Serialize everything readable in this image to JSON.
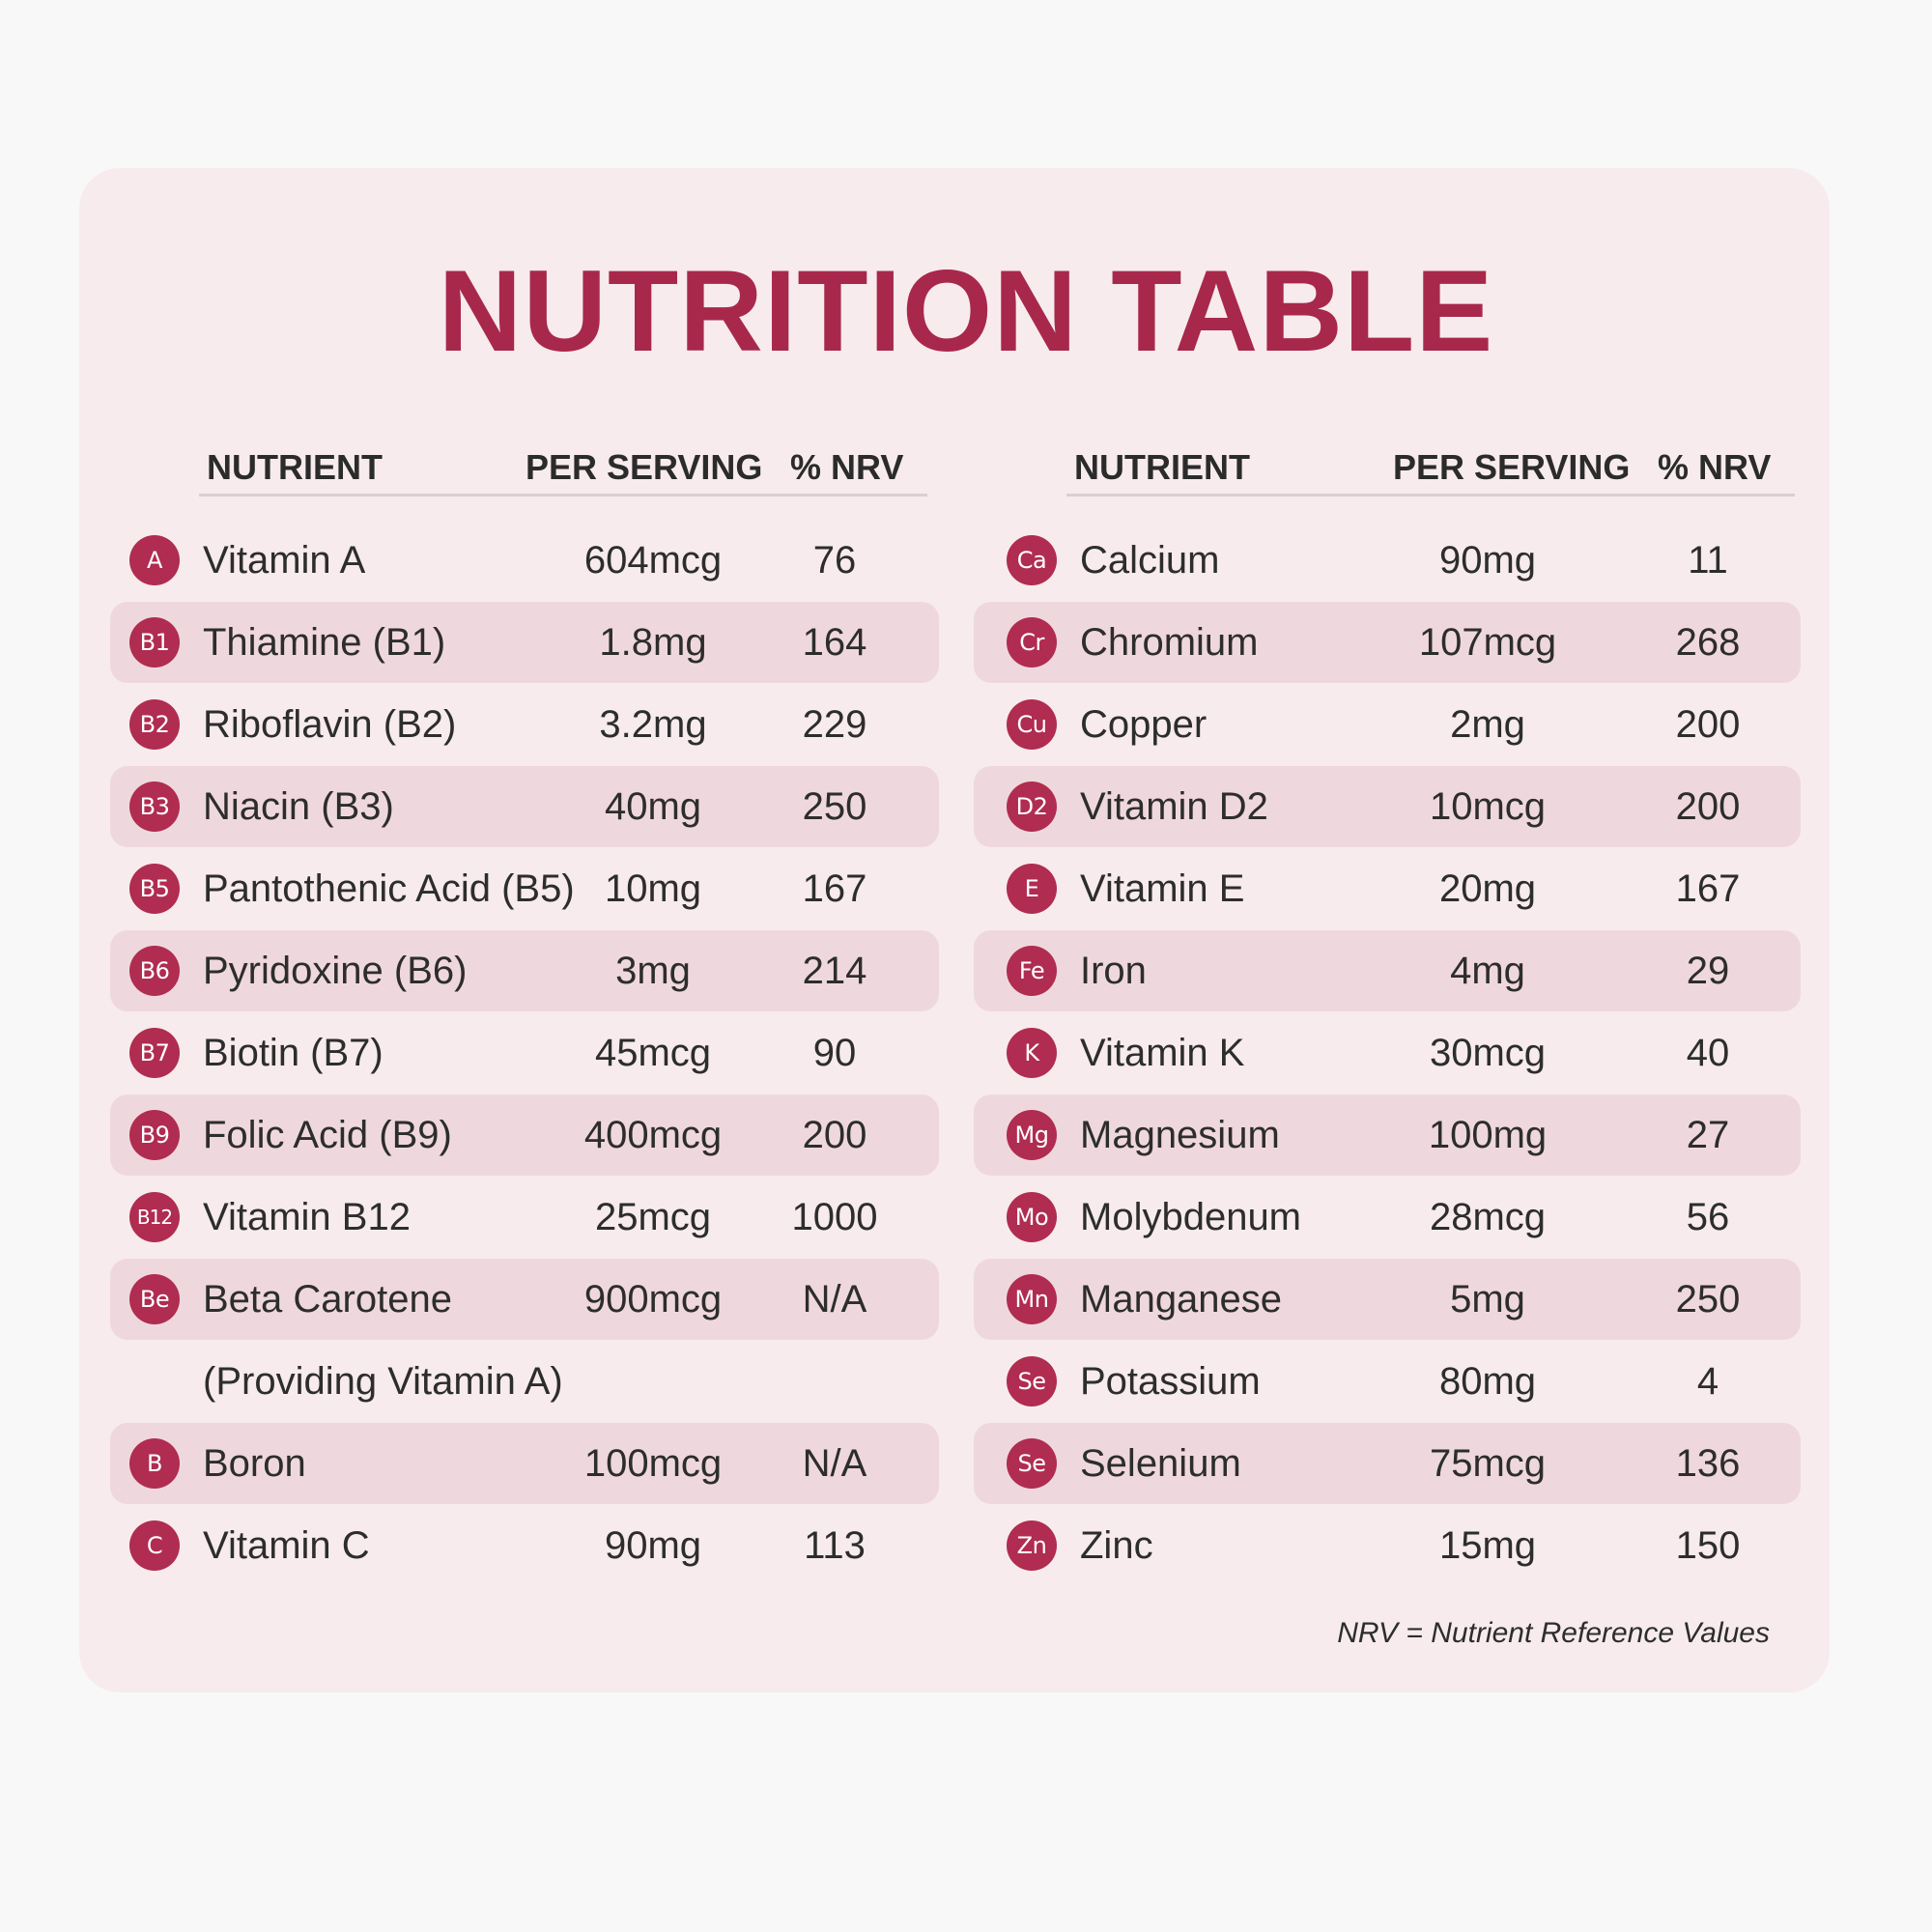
{
  "title": "NUTRITION TABLE",
  "colors": {
    "accent": "#a8284b",
    "badge": "#b02c50",
    "card_background": "#f7ebed",
    "row_shade": "#efd8dd",
    "page_background": "#f9f8f8"
  },
  "left_table": {
    "headers": {
      "nutrient": "NUTRIENT",
      "per_serving": "PER SERVING",
      "nrv": "% NRV"
    },
    "rows": [
      {
        "badge": "A",
        "name": "Vitamin A",
        "per_serving": "604mcg",
        "nrv": "76",
        "shaded": false
      },
      {
        "badge": "B1",
        "name": "Thiamine (B1)",
        "per_serving": "1.8mg",
        "nrv": "164",
        "shaded": true
      },
      {
        "badge": "B2",
        "name": "Riboflavin (B2)",
        "per_serving": "3.2mg",
        "nrv": "229",
        "shaded": false
      },
      {
        "badge": "B3",
        "name": "Niacin (B3)",
        "per_serving": "40mg",
        "nrv": "250",
        "shaded": true
      },
      {
        "badge": "B5",
        "name": "Pantothenic Acid (B5)",
        "per_serving": "10mg",
        "nrv": "167",
        "shaded": false
      },
      {
        "badge": "B6",
        "name": "Pyridoxine (B6)",
        "per_serving": "3mg",
        "nrv": "214",
        "shaded": true
      },
      {
        "badge": "B7",
        "name": "Biotin (B7)",
        "per_serving": "45mcg",
        "nrv": "90",
        "shaded": false
      },
      {
        "badge": "B9",
        "name": "Folic Acid (B9)",
        "per_serving": "400mcg",
        "nrv": "200",
        "shaded": true
      },
      {
        "badge": "B12",
        "name": "Vitamin B12",
        "per_serving": "25mcg",
        "nrv": "1000",
        "shaded": false
      },
      {
        "badge": "Be",
        "name": "Beta Carotene",
        "per_serving": "900mcg",
        "nrv": "N/A",
        "shaded": true
      },
      {
        "badge": "",
        "name": "(Providing Vitamin A)",
        "per_serving": "",
        "nrv": "",
        "shaded": false
      },
      {
        "badge": "B",
        "name": "Boron",
        "per_serving": "100mcg",
        "nrv": "N/A",
        "shaded": true
      },
      {
        "badge": "C",
        "name": "Vitamin C",
        "per_serving": "90mg",
        "nrv": "113",
        "shaded": false
      }
    ]
  },
  "right_table": {
    "headers": {
      "nutrient": "NUTRIENT",
      "per_serving": "PER SERVING",
      "nrv": "% NRV"
    },
    "rows": [
      {
        "badge": "Ca",
        "name": "Calcium",
        "per_serving": "90mg",
        "nrv": "11",
        "shaded": false
      },
      {
        "badge": "Cr",
        "name": "Chromium",
        "per_serving": "107mcg",
        "nrv": "268",
        "shaded": true
      },
      {
        "badge": "Cu",
        "name": "Copper",
        "per_serving": "2mg",
        "nrv": "200",
        "shaded": false
      },
      {
        "badge": "D2",
        "name": "Vitamin D2",
        "per_serving": "10mcg",
        "nrv": "200",
        "shaded": true
      },
      {
        "badge": "E",
        "name": "Vitamin E",
        "per_serving": "20mg",
        "nrv": "167",
        "shaded": false
      },
      {
        "badge": "Fe",
        "name": "Iron",
        "per_serving": "4mg",
        "nrv": "29",
        "shaded": true
      },
      {
        "badge": "K",
        "name": "Vitamin K",
        "per_serving": "30mcg",
        "nrv": "40",
        "shaded": false
      },
      {
        "badge": "Mg",
        "name": "Magnesium",
        "per_serving": "100mg",
        "nrv": "27",
        "shaded": true
      },
      {
        "badge": "Mo",
        "name": "Molybdenum",
        "per_serving": "28mcg",
        "nrv": "56",
        "shaded": false
      },
      {
        "badge": "Mn",
        "name": "Manganese",
        "per_serving": "5mg",
        "nrv": "250",
        "shaded": true
      },
      {
        "badge": "Se",
        "name": "Potassium",
        "per_serving": "80mg",
        "nrv": "4",
        "shaded": false
      },
      {
        "badge": "Se",
        "name": "Selenium",
        "per_serving": "75mcg",
        "nrv": "136",
        "shaded": true
      },
      {
        "badge": "Zn",
        "name": "Zinc",
        "per_serving": "15mg",
        "nrv": "150",
        "shaded": false
      }
    ]
  },
  "footnote": "NRV = Nutrient Reference Values"
}
